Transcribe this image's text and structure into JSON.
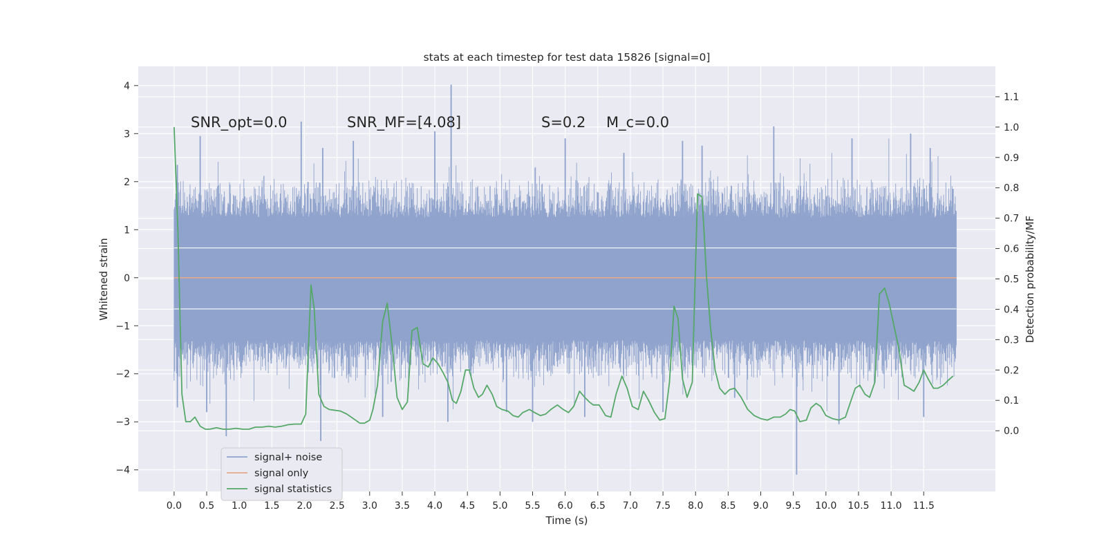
{
  "chart_data": {
    "type": "line",
    "title": "stats at each timestep for test data 15826 [signal=0]",
    "xlabel": "Time (s)",
    "ylabel_left": "Whitened strain",
    "ylabel_right": "Detection probability/MF",
    "xlim": [
      -0.55,
      12.6
    ],
    "ylim_left": [
      -4.45,
      4.4
    ],
    "ylim_right": [
      -0.2,
      1.2
    ],
    "x_ticks": [
      0.0,
      0.5,
      1.0,
      1.5,
      2.0,
      2.5,
      3.0,
      3.5,
      4.0,
      4.5,
      5.0,
      5.5,
      6.0,
      6.5,
      7.0,
      7.5,
      8.0,
      8.5,
      9.0,
      9.5,
      10.0,
      10.5,
      11.0,
      11.5
    ],
    "x_tick_labels": [
      "0.0",
      "0.5",
      "1.0",
      "1.5",
      "2.0",
      "2.5",
      "3.0",
      "3.5",
      "4.0",
      "4.5",
      "5.0",
      "5.5",
      "6.0",
      "6.5",
      "7.0",
      "7.5",
      "8.0",
      "8.5",
      "9.0",
      "9.5",
      "10.0",
      "10.5",
      "11.0",
      "11.5"
    ],
    "y_left_ticks": [
      4,
      3,
      2,
      1,
      0,
      -1,
      -2,
      -3,
      -4
    ],
    "y_left_tick_labels": [
      "4",
      "3",
      "2",
      "1",
      "0",
      "−1",
      "−2",
      "−3",
      "−4"
    ],
    "y_right_ticks": [
      1.1,
      1.0,
      0.9,
      0.8,
      0.7,
      0.6,
      0.5,
      0.4,
      0.3,
      0.2,
      0.1,
      0.0
    ],
    "y_right_tick_labels": [
      "1.1",
      "1.0",
      "0.9",
      "0.8",
      "0.7",
      "0.6",
      "0.5",
      "0.4",
      "0.3",
      "0.2",
      "0.1",
      "0.0"
    ],
    "grid": true,
    "legend_placement": "lower-left",
    "annotations": [
      "SNR_opt=0.0",
      "SNR_MF=[4.08]",
      "S=0.2",
      "M_c=0.0"
    ],
    "noise_envelope": {
      "t_start": 0.0,
      "t_end": 12.0,
      "typical_upper": 1.25,
      "typical_lower": -1.3,
      "peaks_upper": [
        [
          0.05,
          2.35
        ],
        [
          0.4,
          2.95
        ],
        [
          1.95,
          3.25
        ],
        [
          2.28,
          2.7
        ],
        [
          2.75,
          2.85
        ],
        [
          4.0,
          3.05
        ],
        [
          4.25,
          4.02
        ],
        [
          6.0,
          2.9
        ],
        [
          6.9,
          2.6
        ],
        [
          7.8,
          2.85
        ],
        [
          8.1,
          2.75
        ],
        [
          9.2,
          3.15
        ],
        [
          10.4,
          2.9
        ],
        [
          11.3,
          3.0
        ],
        [
          11.6,
          2.7
        ],
        [
          11.95,
          1.85
        ]
      ],
      "peaks_lower": [
        [
          0.05,
          -2.7
        ],
        [
          0.5,
          -2.8
        ],
        [
          0.8,
          -3.3
        ],
        [
          2.25,
          -3.4
        ],
        [
          3.2,
          -2.9
        ],
        [
          4.2,
          -3.0
        ],
        [
          5.1,
          -2.8
        ],
        [
          5.5,
          -3.0
        ],
        [
          6.3,
          -2.9
        ],
        [
          7.5,
          -2.8
        ],
        [
          8.6,
          -2.5
        ],
        [
          9.55,
          -4.1
        ],
        [
          10.2,
          -3.05
        ],
        [
          11.5,
          -2.9
        ]
      ]
    },
    "series": [
      {
        "name": "signal+ noise",
        "color": "#8fa3cc",
        "axis": "left",
        "style": "dense noise band"
      },
      {
        "name": "signal only",
        "color": "#e6a98a",
        "axis": "left",
        "x": [
          0.0,
          12.0
        ],
        "y": [
          0.0,
          0.0
        ]
      },
      {
        "name": "signal statistics",
        "color": "#55a868",
        "axis": "right",
        "x": [
          0.0,
          0.06,
          0.12,
          0.18,
          0.25,
          0.32,
          0.4,
          0.48,
          0.55,
          0.65,
          0.75,
          0.85,
          0.95,
          1.05,
          1.15,
          1.25,
          1.35,
          1.45,
          1.55,
          1.65,
          1.75,
          1.85,
          1.95,
          2.02,
          2.1,
          2.15,
          2.22,
          2.3,
          2.38,
          2.45,
          2.55,
          2.65,
          2.75,
          2.85,
          2.92,
          3.0,
          3.05,
          3.12,
          3.2,
          3.27,
          3.35,
          3.42,
          3.5,
          3.58,
          3.65,
          3.73,
          3.82,
          3.9,
          3.97,
          4.05,
          4.13,
          4.2,
          4.27,
          4.33,
          4.4,
          4.47,
          4.53,
          4.6,
          4.67,
          4.73,
          4.8,
          4.88,
          4.95,
          5.03,
          5.12,
          5.2,
          5.28,
          5.35,
          5.45,
          5.53,
          5.62,
          5.7,
          5.78,
          5.88,
          5.97,
          6.05,
          6.13,
          6.22,
          6.3,
          6.37,
          6.43,
          6.52,
          6.62,
          6.7,
          6.78,
          6.87,
          6.95,
          7.03,
          7.12,
          7.2,
          7.28,
          7.37,
          7.45,
          7.53,
          7.6,
          7.67,
          7.73,
          7.8,
          7.87,
          7.95,
          8.03,
          8.1,
          8.17,
          8.23,
          8.3,
          8.37,
          8.45,
          8.52,
          8.6,
          8.7,
          8.8,
          8.9,
          9.0,
          9.1,
          9.2,
          9.3,
          9.38,
          9.45,
          9.52,
          9.6,
          9.7,
          9.77,
          9.85,
          9.92,
          10.0,
          10.1,
          10.2,
          10.3,
          10.37,
          10.45,
          10.52,
          10.6,
          10.67,
          10.75,
          10.82,
          10.9,
          10.97,
          11.05,
          11.12,
          11.2,
          11.28,
          11.35,
          11.43,
          11.5,
          11.57,
          11.65,
          11.72,
          11.8,
          11.87,
          11.95
        ],
        "y": [
          1.0,
          0.65,
          0.12,
          0.03,
          0.03,
          0.045,
          0.015,
          0.005,
          0.005,
          0.01,
          0.005,
          0.005,
          0.008,
          0.005,
          0.005,
          0.012,
          0.012,
          0.015,
          0.012,
          0.015,
          0.02,
          0.022,
          0.022,
          0.055,
          0.48,
          0.4,
          0.12,
          0.08,
          0.07,
          0.068,
          0.065,
          0.055,
          0.04,
          0.025,
          0.025,
          0.035,
          0.07,
          0.15,
          0.36,
          0.42,
          0.27,
          0.11,
          0.07,
          0.095,
          0.33,
          0.34,
          0.22,
          0.21,
          0.24,
          0.22,
          0.19,
          0.16,
          0.1,
          0.09,
          0.13,
          0.2,
          0.2,
          0.14,
          0.11,
          0.12,
          0.15,
          0.12,
          0.08,
          0.07,
          0.065,
          0.05,
          0.045,
          0.06,
          0.07,
          0.06,
          0.05,
          0.055,
          0.07,
          0.085,
          0.07,
          0.06,
          0.08,
          0.13,
          0.11,
          0.095,
          0.085,
          0.085,
          0.05,
          0.045,
          0.12,
          0.18,
          0.14,
          0.08,
          0.07,
          0.13,
          0.1,
          0.06,
          0.035,
          0.04,
          0.16,
          0.41,
          0.37,
          0.17,
          0.11,
          0.16,
          0.78,
          0.77,
          0.5,
          0.34,
          0.2,
          0.14,
          0.12,
          0.135,
          0.14,
          0.11,
          0.07,
          0.05,
          0.04,
          0.035,
          0.045,
          0.045,
          0.055,
          0.07,
          0.065,
          0.03,
          0.035,
          0.075,
          0.09,
          0.08,
          0.05,
          0.04,
          0.035,
          0.045,
          0.09,
          0.14,
          0.15,
          0.12,
          0.11,
          0.16,
          0.45,
          0.47,
          0.42,
          0.34,
          0.27,
          0.15,
          0.14,
          0.13,
          0.16,
          0.2,
          0.17,
          0.14,
          0.14,
          0.15,
          0.165,
          0.18
        ]
      }
    ]
  }
}
